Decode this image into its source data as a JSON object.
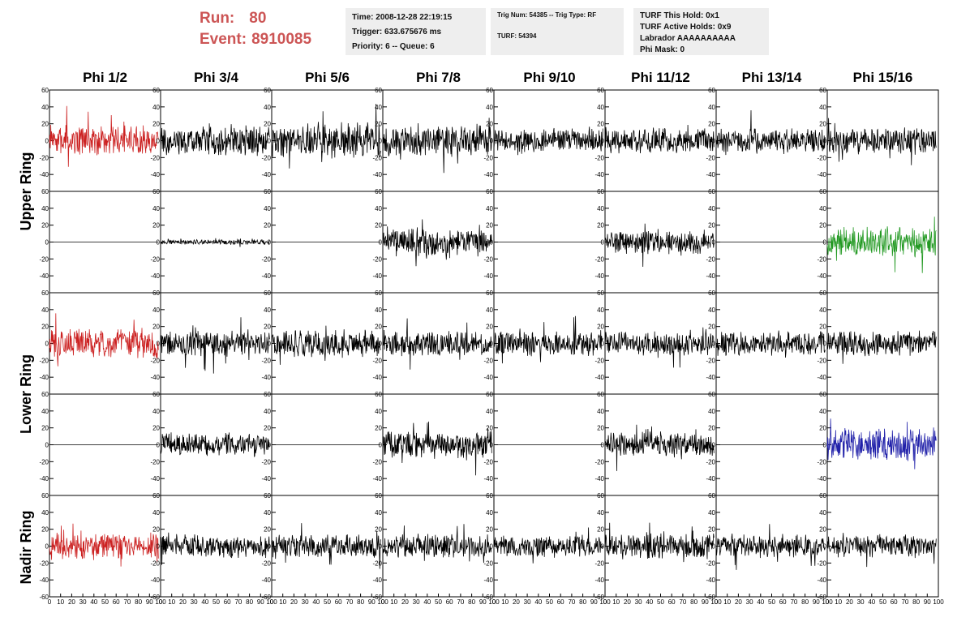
{
  "run_info": {
    "run_label": "Run:",
    "run_value": "80",
    "event_label": "Event:",
    "event_value": "8910085"
  },
  "info_panel_1": {
    "time": "Time: 2008-12-28 22:19:15",
    "trigger": "Trigger: 633.675676 ms",
    "priority": "Priority: 6 -- Queue: 6"
  },
  "info_panel_2": {
    "trig": "Trig Num: 54385 -- Trig Type: RF",
    "turf": "TURF: 54394"
  },
  "info_panel_3": {
    "hold": "TURF This Hold: 0x1",
    "active_holds": "TURF Active Holds: 0x9",
    "labrador": "Labrador AAAAAAAAAA",
    "phi_mask": "Phi Mask: 0"
  },
  "columns": [
    "Phi 1/2",
    "Phi 3/4",
    "Phi 5/6",
    "Phi 7/8",
    "Phi 9/10",
    "Phi 11/12",
    "Phi 13/14",
    "Phi 15/16"
  ],
  "rings": [
    {
      "label": "Upper Ring"
    },
    {
      "label": "Lower Ring"
    },
    {
      "label": "Nadir Ring"
    }
  ],
  "chart_data": {
    "type": "line",
    "title": "",
    "xlabel": "",
    "ylabel": "",
    "xlim": [
      0,
      100
    ],
    "ylim": [
      -60,
      60
    ],
    "y_ticks": [
      -60,
      -40,
      -20,
      0,
      20,
      40,
      60
    ],
    "x_ticks": [
      0,
      10,
      20,
      30,
      40,
      50,
      60,
      70,
      80,
      90,
      100
    ],
    "grid": false,
    "colors": {
      "default": "#000000",
      "red": "#cc2222",
      "green": "#229922",
      "blue": "#2222aa"
    },
    "panel_rows": [
      {
        "ring": "Upper Ring",
        "channels": [
          {
            "amp": 14,
            "color": "red"
          },
          {
            "amp": 14,
            "color": "default"
          },
          {
            "amp": 16,
            "color": "default"
          },
          {
            "amp": 15,
            "color": "default"
          },
          {
            "amp": 12,
            "color": "default"
          },
          {
            "amp": 12,
            "color": "default"
          },
          {
            "amp": 12,
            "color": "default"
          },
          {
            "amp": 12,
            "color": "default"
          }
        ]
      },
      {
        "ring": "Upper Ring",
        "channels": [
          {
            "amp": 0,
            "color": "default"
          },
          {
            "amp": 2.5,
            "color": "default"
          },
          {
            "amp": 0,
            "color": "default"
          },
          {
            "amp": 13,
            "color": "default"
          },
          {
            "amp": 0,
            "color": "default"
          },
          {
            "amp": 11,
            "color": "default"
          },
          {
            "amp": 0,
            "color": "default"
          },
          {
            "amp": 14,
            "color": "green"
          }
        ]
      },
      {
        "ring": "Lower Ring",
        "channels": [
          {
            "amp": 14,
            "color": "red"
          },
          {
            "amp": 12,
            "color": "default"
          },
          {
            "amp": 13,
            "color": "default"
          },
          {
            "amp": 12,
            "color": "default"
          },
          {
            "amp": 12,
            "color": "default"
          },
          {
            "amp": 11,
            "color": "default"
          },
          {
            "amp": 11,
            "color": "default"
          },
          {
            "amp": 12,
            "color": "default"
          }
        ]
      },
      {
        "ring": "Lower Ring",
        "channels": [
          {
            "amp": 0,
            "color": "default"
          },
          {
            "amp": 11,
            "color": "default"
          },
          {
            "amp": 0,
            "color": "default"
          },
          {
            "amp": 13,
            "color": "default"
          },
          {
            "amp": 0,
            "color": "default"
          },
          {
            "amp": 12,
            "color": "default"
          },
          {
            "amp": 0,
            "color": "default"
          },
          {
            "amp": 15,
            "color": "blue"
          }
        ]
      },
      {
        "ring": "Nadir Ring",
        "channels": [
          {
            "amp": 12,
            "color": "red"
          },
          {
            "amp": 11,
            "color": "default"
          },
          {
            "amp": 11,
            "color": "default"
          },
          {
            "amp": 11,
            "color": "default"
          },
          {
            "amp": 10,
            "color": "default"
          },
          {
            "amp": 12,
            "color": "default"
          },
          {
            "amp": 11,
            "color": "default"
          },
          {
            "amp": 11,
            "color": "default"
          }
        ]
      }
    ]
  }
}
